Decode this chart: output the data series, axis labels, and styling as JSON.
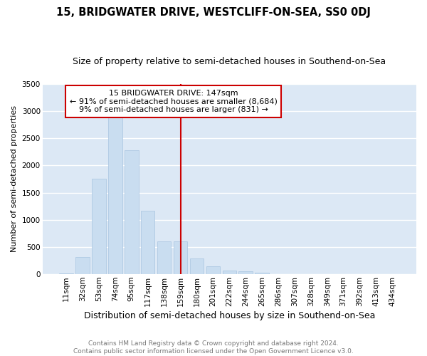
{
  "title": "15, BRIDGWATER DRIVE, WESTCLIFF-ON-SEA, SS0 0DJ",
  "subtitle": "Size of property relative to semi-detached houses in Southend-on-Sea",
  "xlabel": "Distribution of semi-detached houses by size in Southend-on-Sea",
  "ylabel": "Number of semi-detached properties",
  "footer1": "Contains HM Land Registry data © Crown copyright and database right 2024.",
  "footer2": "Contains public sector information licensed under the Open Government Licence v3.0.",
  "bar_labels": [
    "11sqm",
    "32sqm",
    "53sqm",
    "74sqm",
    "95sqm",
    "117sqm",
    "138sqm",
    "159sqm",
    "180sqm",
    "201sqm",
    "222sqm",
    "244sqm",
    "265sqm",
    "286sqm",
    "307sqm",
    "328sqm",
    "349sqm",
    "371sqm",
    "392sqm",
    "413sqm",
    "434sqm"
  ],
  "bar_values": [
    15,
    315,
    1750,
    2920,
    2280,
    1170,
    610,
    610,
    295,
    140,
    70,
    60,
    30,
    0,
    0,
    0,
    0,
    0,
    0,
    0,
    0
  ],
  "bar_color": "#c9ddf0",
  "bar_edge_color": "#a8c4e0",
  "bg_color": "#dce8f5",
  "grid_color": "#ffffff",
  "vline_x": 7.0,
  "vline_color": "#cc0000",
  "box_text_line1": "15 BRIDGWATER DRIVE: 147sqm",
  "box_text_line2": "← 91% of semi-detached houses are smaller (8,684)",
  "box_text_line3": "9% of semi-detached houses are larger (831) →",
  "box_color": "#cc0000",
  "box_fill": "#ffffff",
  "ylim": [
    0,
    3500
  ],
  "yticks": [
    0,
    500,
    1000,
    1500,
    2000,
    2500,
    3000,
    3500
  ],
  "title_fontsize": 10.5,
  "subtitle_fontsize": 9,
  "xlabel_fontsize": 9,
  "ylabel_fontsize": 8,
  "tick_fontsize": 7.5,
  "footer_fontsize": 6.5
}
